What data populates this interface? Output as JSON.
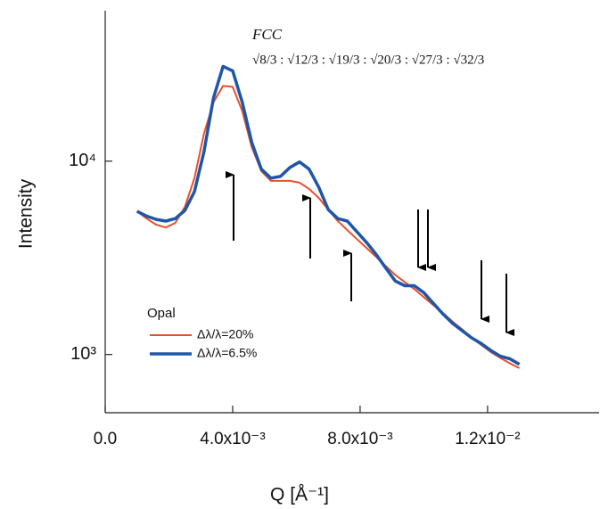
{
  "chart_data": {
    "type": "line",
    "x_label": "Q [Å⁻¹]",
    "y_label": "Intensity",
    "annotations": [
      "FCC",
      "√8/3 : √12/3 : √19/3 : √20/3 : √27/3 : √32/3"
    ],
    "legend_title": "Opal",
    "legend": "lower left",
    "log_y": true,
    "xlim": [
      0,
      0.0155
    ],
    "ylim": [
      500,
      60000
    ],
    "xticks": [
      {
        "value": 0,
        "label": "0.0"
      },
      {
        "value": 0.004,
        "label": "4.0x10⁻³"
      },
      {
        "value": 0.008,
        "label": "8.0x10⁻³"
      },
      {
        "value": 0.012,
        "label": "1.2x10⁻²"
      }
    ],
    "yticks": [
      {
        "value": 1000,
        "label": "10³"
      },
      {
        "value": 10000,
        "label": "10⁴"
      }
    ],
    "x": [
      0.001,
      0.0013,
      0.0016,
      0.0019,
      0.0022,
      0.0025,
      0.0028,
      0.0031,
      0.0034,
      0.0037,
      0.004,
      0.0043,
      0.0046,
      0.0049,
      0.0052,
      0.0055,
      0.0058,
      0.0061,
      0.0064,
      0.0067,
      0.007,
      0.0073,
      0.0076,
      0.0079,
      0.0082,
      0.0085,
      0.0088,
      0.0091,
      0.0094,
      0.0097,
      0.01,
      0.0103,
      0.0106,
      0.0109,
      0.0112,
      0.0115,
      0.0118,
      0.0121,
      0.0124,
      0.0127,
      0.013
    ],
    "series": [
      {
        "name": "Δλ/λ=20%",
        "color": "#e8502a",
        "width": 2,
        "values": [
          5500,
          5050,
          4690,
          4540,
          4790,
          5810,
          8170,
          13900,
          20200,
          24500,
          24200,
          18200,
          11800,
          8890,
          7910,
          7910,
          7910,
          7740,
          7190,
          6460,
          5620,
          4900,
          4400,
          3950,
          3560,
          3200,
          2870,
          2580,
          2370,
          2180,
          1980,
          1800,
          1640,
          1480,
          1350,
          1220,
          1120,
          1030,
          960,
          900,
          850
        ]
      },
      {
        "name": "Δλ/λ=6.5%",
        "color": "#1f56a8",
        "width": 3.5,
        "values": [
          5500,
          5200,
          5000,
          4900,
          5050,
          5560,
          6960,
          11200,
          21300,
          30900,
          29300,
          20200,
          12500,
          9100,
          8170,
          8340,
          9280,
          9900,
          9100,
          7340,
          5620,
          5050,
          4900,
          4310,
          3800,
          3300,
          2810,
          2400,
          2270,
          2270,
          2090,
          1840,
          1620,
          1450,
          1330,
          1220,
          1140,
          1050,
          980,
          950,
          890
        ]
      }
    ]
  }
}
